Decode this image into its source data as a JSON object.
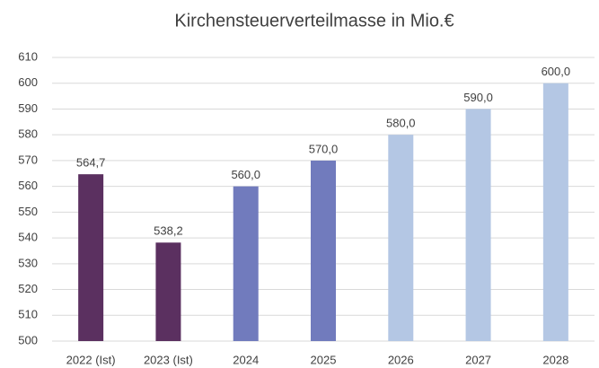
{
  "chart_data": {
    "type": "bar",
    "title": "Kirchensteuerverteilmasse in Mio.€",
    "categories": [
      "2022 (Ist)",
      "2023 (Ist)",
      "2024",
      "2025",
      "2026",
      "2027",
      "2028"
    ],
    "values": [
      564.7,
      538.2,
      560,
      570,
      580,
      590,
      600
    ],
    "value_labels": [
      "564,7",
      "538,2",
      "560,0",
      "570,0",
      "580,0",
      "590,0",
      "600,0"
    ],
    "colors": [
      "#5b3060",
      "#5b3060",
      "#717bbd",
      "#717bbd",
      "#b4c7e4",
      "#b4c7e4",
      "#b4c7e4"
    ],
    "ylim": [
      500,
      610
    ],
    "yticks": [
      500,
      510,
      520,
      530,
      540,
      550,
      560,
      570,
      580,
      590,
      600,
      610
    ],
    "grid": true
  }
}
